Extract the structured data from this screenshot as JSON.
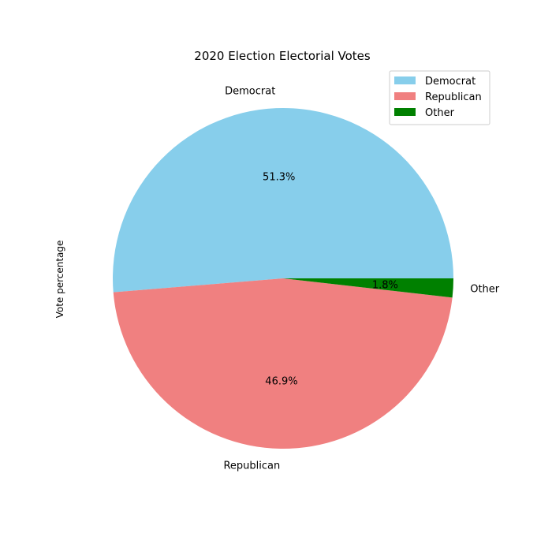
{
  "chart_data": {
    "type": "pie",
    "title": "2020 Election Electorial Votes",
    "ylabel": "Vote percentage",
    "slices": [
      {
        "label": "Democrat",
        "value": 51.3,
        "pct_label": "51.3%",
        "color": "#87CEEB"
      },
      {
        "label": "Republican",
        "value": 46.9,
        "pct_label": "46.9%",
        "color": "#F08080"
      },
      {
        "label": "Other",
        "value": 1.8,
        "pct_label": "1.8%",
        "color": "#008000"
      }
    ],
    "start_angle_deg": 0,
    "direction": "counterclockwise",
    "legend": {
      "placement": "top-right",
      "entries": [
        "Democrat",
        "Republican",
        "Other"
      ]
    }
  }
}
